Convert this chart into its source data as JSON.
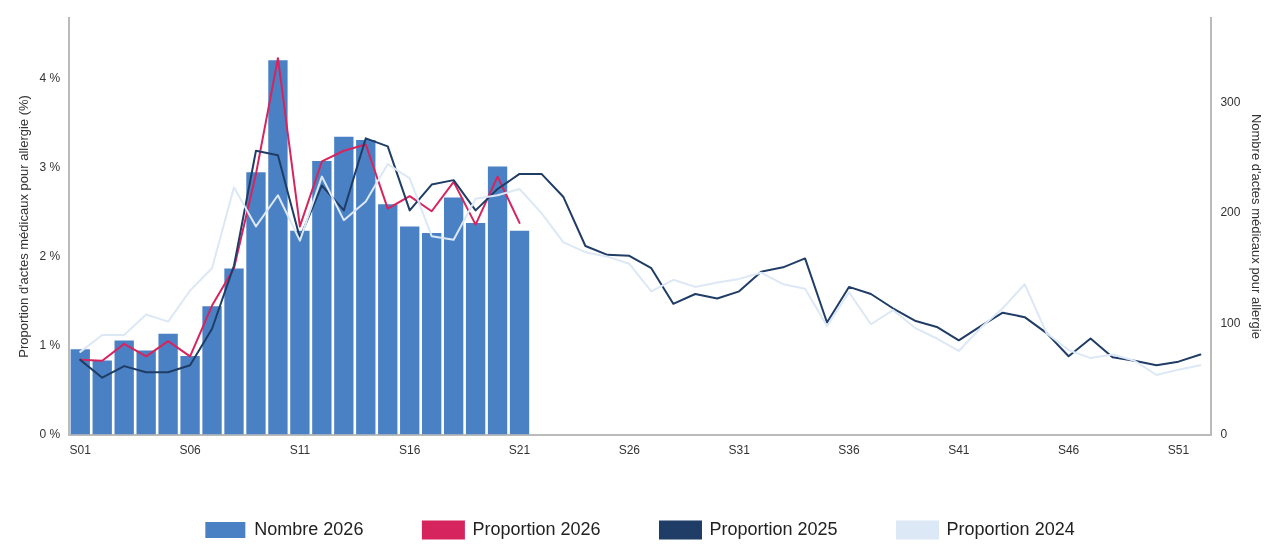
{
  "chart_data": {
    "type": "bar",
    "ylabel": "Proportion d'actes médicaux pour allergie (%)",
    "y2label": "Nombre d'actes médicaux pour allergie",
    "categories": [
      "S01",
      null,
      null,
      null,
      null,
      "S06",
      null,
      null,
      null,
      null,
      "S11",
      null,
      null,
      null,
      null,
      "S16",
      null,
      null,
      null,
      null,
      "S21",
      null,
      null,
      null,
      null,
      "S26",
      null,
      null,
      null,
      null,
      "S31",
      null,
      null,
      null,
      null,
      "S36",
      null,
      null,
      null,
      null,
      "S41",
      null,
      null,
      null,
      null,
      "S46",
      null,
      null,
      null,
      null,
      "S51",
      null
    ],
    "ylim": [
      0,
      4.68
    ],
    "yticks": [
      {
        "value": 0,
        "label": "0 %"
      },
      {
        "value": 1,
        "label": "1 %"
      },
      {
        "value": 2,
        "label": "2 %"
      },
      {
        "value": 3,
        "label": "3 %"
      },
      {
        "value": 4,
        "label": "4 %"
      }
    ],
    "y2lim": [
      0,
      376
    ],
    "y2ticks": [
      0,
      100,
      200,
      300
    ],
    "grid": false,
    "legend": "bottom",
    "series": [
      {
        "name": "Nombre 2026",
        "type": "bar",
        "axis": "y2",
        "color": "#4a81c4",
        "values": [
          77,
          67,
          85,
          76,
          91,
          71,
          116,
          150,
          237,
          338,
          184,
          247,
          269,
          266,
          208,
          188,
          182,
          214,
          191,
          242,
          184,
          null,
          null,
          null,
          null,
          null,
          null,
          null,
          null,
          null,
          null,
          null,
          null,
          null,
          null,
          null,
          null,
          null,
          null,
          null,
          null,
          null,
          null,
          null,
          null,
          null,
          null,
          null,
          null,
          null,
          null,
          null
        ]
      },
      {
        "name": "Proportion 2026",
        "type": "line",
        "color": "#d6245e",
        "values": [
          0.84,
          0.83,
          1.02,
          0.88,
          1.05,
          0.88,
          1.45,
          1.87,
          2.93,
          4.23,
          2.34,
          3.07,
          3.19,
          3.26,
          2.54,
          2.68,
          2.51,
          2.84,
          2.36,
          2.9,
          2.38,
          null,
          null,
          null,
          null,
          null,
          null,
          null,
          null,
          null,
          null,
          null,
          null,
          null,
          null,
          null,
          null,
          null,
          null,
          null,
          null,
          null,
          null,
          null,
          null,
          null,
          null,
          null,
          null,
          null,
          null,
          null
        ]
      },
      {
        "name": "Proportion 2025",
        "type": "line",
        "color": "#1f3d66",
        "values": [
          0.84,
          0.64,
          0.77,
          0.7,
          0.7,
          0.78,
          1.19,
          1.9,
          3.19,
          3.14,
          2.21,
          2.8,
          2.52,
          3.33,
          3.24,
          2.52,
          2.81,
          2.86,
          2.52,
          2.76,
          2.93,
          2.93,
          2.67,
          2.12,
          2.02,
          2.01,
          1.87,
          1.47,
          1.58,
          1.53,
          1.61,
          1.83,
          1.88,
          1.98,
          1.26,
          1.66,
          1.58,
          1.42,
          1.28,
          1.21,
          1.06,
          1.22,
          1.37,
          1.32,
          1.14,
          0.88,
          1.08,
          0.87,
          0.83,
          0.78,
          0.82,
          0.9
        ]
      },
      {
        "name": "Proportion 2024",
        "type": "line",
        "color": "#dce8f6",
        "values": [
          0.93,
          1.12,
          1.12,
          1.35,
          1.27,
          1.62,
          1.87,
          2.78,
          2.34,
          2.69,
          2.18,
          2.9,
          2.41,
          2.62,
          3.04,
          2.88,
          2.23,
          2.19,
          2.65,
          2.69,
          2.76,
          2.49,
          2.16,
          2.05,
          2.0,
          1.92,
          1.61,
          1.74,
          1.66,
          1.71,
          1.75,
          1.82,
          1.69,
          1.64,
          1.22,
          1.6,
          1.24,
          1.4,
          1.2,
          1.08,
          0.94,
          1.2,
          1.42,
          1.69,
          1.14,
          0.95,
          0.86,
          0.9,
          0.83,
          0.67,
          0.73,
          0.78
        ]
      }
    ]
  }
}
